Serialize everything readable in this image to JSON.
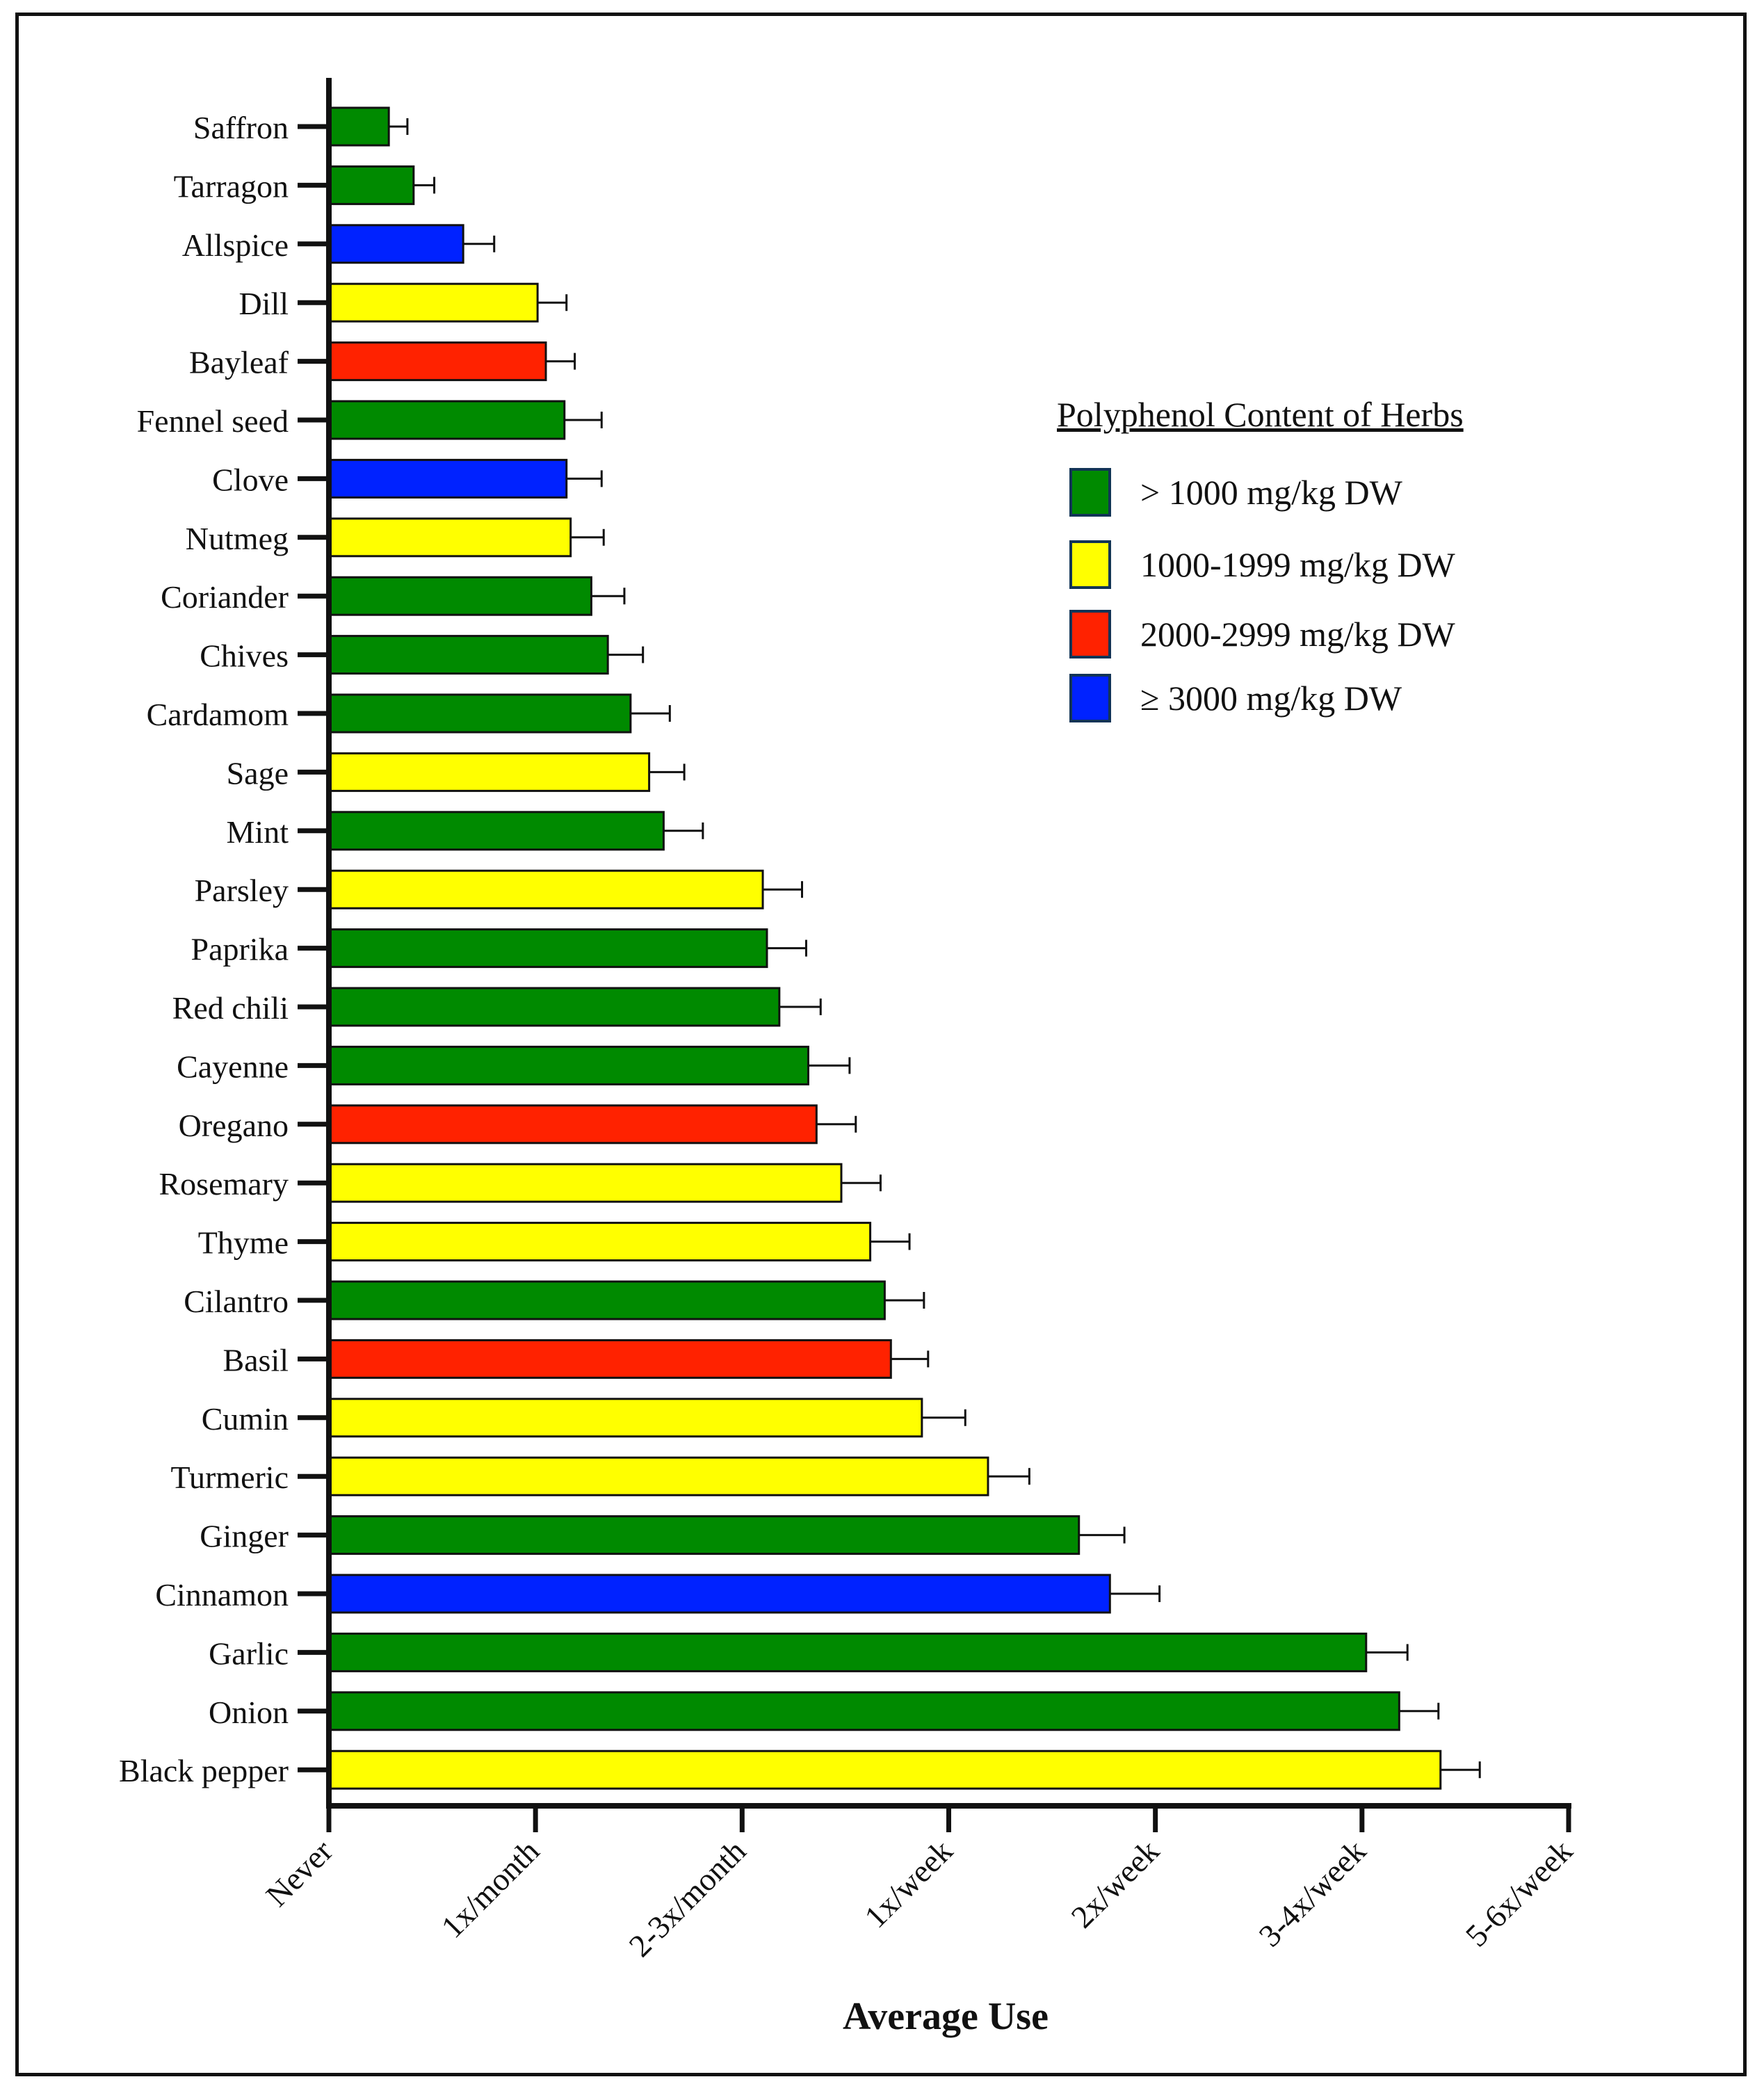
{
  "chart_data": {
    "type": "bar",
    "orientation": "horizontal",
    "xlabel": "Average Use",
    "ylabel": "",
    "x_ticks": [
      "Never",
      "1x/month",
      "2-3x/month",
      "1x/week",
      "2x/week",
      "3-4x/week",
      "5-6x/week"
    ],
    "xlim": [
      0,
      6
    ],
    "grid": false,
    "legend": {
      "title": "Polyphenol Content of Herbs",
      "placement": "right",
      "items": [
        {
          "key": "g",
          "label": "> 1000 mg/kg DW",
          "color": "#008a00"
        },
        {
          "key": "y",
          "label": "1000-1999 mg/kg DW",
          "color": "#ffff00"
        },
        {
          "key": "r",
          "label": "2000-2999 mg/kg DW",
          "color": "#ff2200"
        },
        {
          "key": "b",
          "label": "≥  3000 mg/kg DW",
          "color": "#0022ff"
        }
      ]
    },
    "categories": [
      "Saffron",
      "Tarragon",
      "Allspice",
      "Dill",
      "Bayleaf",
      "Fennel seed",
      "Clove",
      "Nutmeg",
      "Coriander",
      "Chives",
      "Cardamom",
      "Sage",
      "Mint",
      "Parsley",
      "Paprika",
      "Red chili",
      "Cayenne",
      "Oregano",
      "Rosemary",
      "Thyme",
      "Cilantro",
      "Basil",
      "Cumin",
      "Turmeric",
      "Ginger",
      "Cinnamon",
      "Garlic",
      "Onion",
      "Black pepper"
    ],
    "values": [
      0.29,
      0.41,
      0.65,
      1.01,
      1.05,
      1.14,
      1.15,
      1.17,
      1.27,
      1.35,
      1.46,
      1.55,
      1.62,
      2.1,
      2.12,
      2.18,
      2.32,
      2.36,
      2.48,
      2.62,
      2.69,
      2.72,
      2.87,
      3.19,
      3.63,
      3.78,
      5.02,
      5.18,
      5.38
    ],
    "errors": [
      0.09,
      0.1,
      0.15,
      0.14,
      0.14,
      0.18,
      0.17,
      0.16,
      0.16,
      0.17,
      0.19,
      0.17,
      0.19,
      0.19,
      0.19,
      0.2,
      0.2,
      0.19,
      0.19,
      0.19,
      0.19,
      0.18,
      0.21,
      0.2,
      0.22,
      0.24,
      0.2,
      0.19,
      0.19
    ],
    "color_groups": [
      "g",
      "g",
      "b",
      "y",
      "r",
      "g",
      "b",
      "y",
      "g",
      "g",
      "g",
      "y",
      "g",
      "y",
      "g",
      "g",
      "g",
      "r",
      "y",
      "y",
      "g",
      "r",
      "y",
      "y",
      "g",
      "b",
      "g",
      "g",
      "y"
    ]
  }
}
